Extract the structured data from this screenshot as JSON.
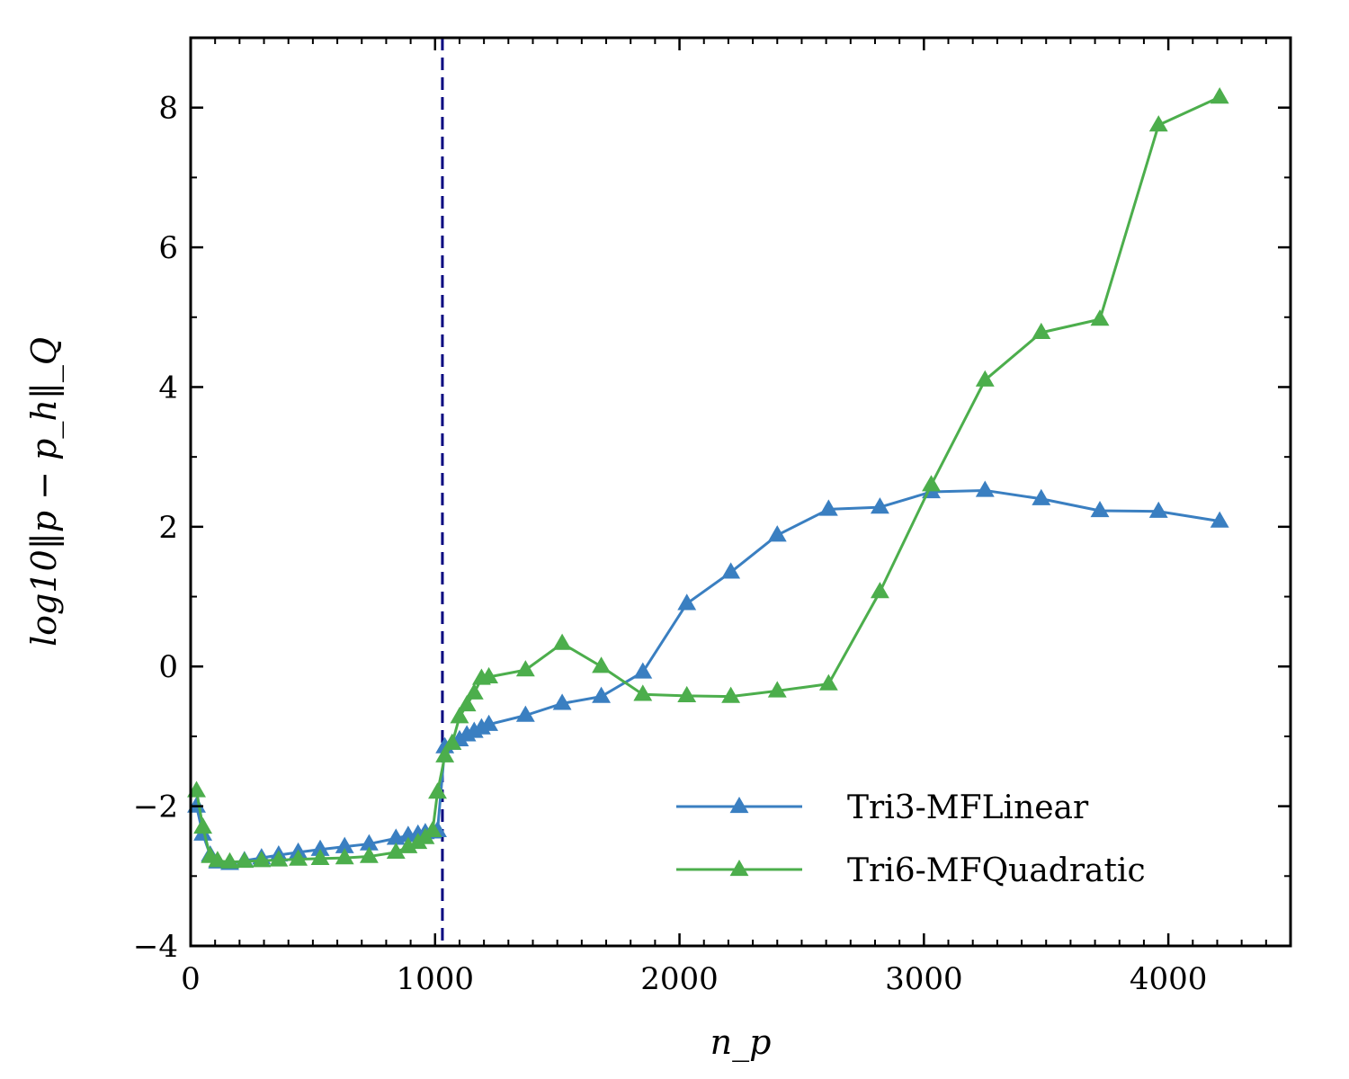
{
  "chart_data": {
    "type": "line",
    "title": "",
    "xlabel": "n_p",
    "ylabel": "log10‖p − p_h‖_Q",
    "xlim": [
      0,
      4500
    ],
    "ylim": [
      -4,
      9
    ],
    "xticks": [
      0,
      1000,
      2000,
      3000,
      4000
    ],
    "yticks": [
      -4,
      -2,
      0,
      2,
      4,
      6,
      8
    ],
    "xtick_labels": [
      "0",
      "1000",
      "2000",
      "3000",
      "4000"
    ],
    "ytick_labels": [
      "−4",
      "−2",
      "0",
      "2",
      "4",
      "6",
      "8"
    ],
    "grid": false,
    "legend_position": "lower-right",
    "reference_line": {
      "x": 1030,
      "style": "dashed",
      "color": "#00007f"
    },
    "series": [
      {
        "name": "Tri3-MFLinear",
        "color": "#3a7fc1",
        "marker": "triangle",
        "x": [
          24,
          50,
          80,
          110,
          160,
          220,
          290,
          360,
          440,
          530,
          630,
          730,
          840,
          890,
          930,
          960,
          990,
          1010,
          1040,
          1070,
          1100,
          1130,
          1160,
          1190,
          1220,
          1370,
          1520,
          1680,
          1850,
          2030,
          2210,
          2400,
          2610,
          2820,
          3030,
          3250,
          3480,
          3720,
          3960,
          4210
        ],
        "y": [
          -2.0,
          -2.4,
          -2.7,
          -2.8,
          -2.82,
          -2.78,
          -2.74,
          -2.7,
          -2.66,
          -2.62,
          -2.58,
          -2.54,
          -2.46,
          -2.42,
          -2.4,
          -2.38,
          -2.37,
          -2.35,
          -1.15,
          -1.1,
          -1.05,
          -0.98,
          -0.93,
          -0.88,
          -0.83,
          -0.7,
          -0.53,
          -0.43,
          -0.08,
          0.9,
          1.35,
          1.88,
          2.25,
          2.28,
          2.5,
          2.52,
          2.4,
          2.23,
          2.22,
          2.08
        ]
      },
      {
        "name": "Tri6-MFQuadratic",
        "color": "#4cae4c",
        "marker": "triangle",
        "x": [
          24,
          50,
          80,
          110,
          160,
          220,
          290,
          360,
          440,
          530,
          630,
          730,
          840,
          890,
          930,
          960,
          990,
          1010,
          1040,
          1070,
          1100,
          1130,
          1160,
          1190,
          1220,
          1370,
          1520,
          1680,
          1850,
          2030,
          2210,
          2400,
          2610,
          2820,
          3030,
          3250,
          3480,
          3720,
          3960,
          4210
        ],
        "y": [
          -1.78,
          -2.3,
          -2.72,
          -2.78,
          -2.8,
          -2.79,
          -2.78,
          -2.77,
          -2.76,
          -2.75,
          -2.74,
          -2.72,
          -2.66,
          -2.58,
          -2.52,
          -2.45,
          -2.35,
          -1.8,
          -1.28,
          -1.1,
          -0.72,
          -0.55,
          -0.38,
          -0.17,
          -0.15,
          -0.05,
          0.33,
          0.0,
          -0.4,
          -0.42,
          -0.43,
          -0.35,
          -0.25,
          1.07,
          2.6,
          4.1,
          4.78,
          4.97,
          7.75,
          8.15
        ]
      }
    ]
  }
}
